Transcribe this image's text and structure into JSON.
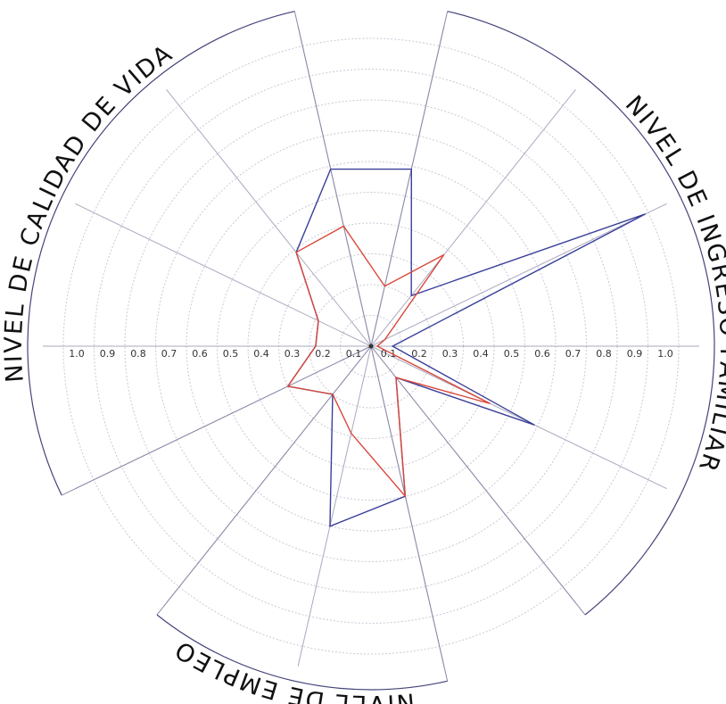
{
  "chart_data": {
    "type": "radar",
    "groups": [
      "NIVEL DE INGRESO FAMILIAR",
      "NIVEL DE EMPLEO",
      "NIVEL DE CALIDAD DE VIDA"
    ],
    "ylim": [
      0,
      1.0
    ],
    "yticks": [
      0.1,
      0.2,
      0.3,
      0.4,
      0.5,
      0.6,
      0.7,
      0.8,
      0.9,
      {
        "value": 1.0,
        "label": "1.0"
      }
    ],
    "grid": true,
    "series": [
      {
        "color": "#3a3f9a",
        "values": [
          0.07,
          0.99,
          0.21,
          0.59,
          0.59,
          0.39,
          0.19,
          0.18,
          0.3,
          0.2,
          0.6,
          0.5,
          0.13,
          0.59
        ]
      },
      {
        "color": "#d9473a",
        "values": [
          0.02,
          0.05,
          0.38,
          0.2,
          0.4,
          0.39,
          0.19,
          0.18,
          0.3,
          0.2,
          0.29,
          0.5,
          0.13,
          0.43
        ]
      }
    ]
  }
}
